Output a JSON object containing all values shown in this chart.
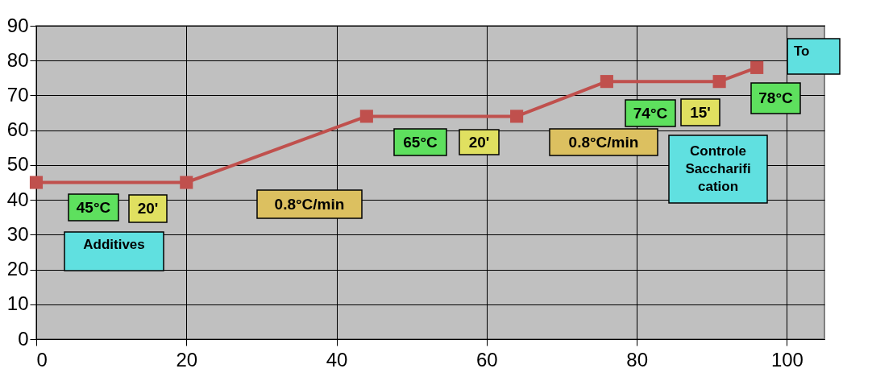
{
  "chart_data": {
    "type": "line",
    "x": [
      0,
      20,
      44,
      64,
      76,
      91,
      96
    ],
    "series": [
      {
        "color": "#c0504d",
        "values": [
          45,
          45,
          64,
          64,
          74,
          74,
          78
        ]
      }
    ],
    "xlim": [
      0,
      105
    ],
    "xticks": [
      0,
      20,
      40,
      60,
      80,
      100
    ],
    "ylim": [
      0,
      90
    ],
    "yticks": [
      0,
      10,
      20,
      30,
      40,
      50,
      60,
      70,
      80,
      90
    ],
    "grid": true,
    "marker": "square",
    "line_style": "solid",
    "annotations": [
      "45°C",
      "20'",
      "Additives",
      "0.8°C/min",
      "65°C",
      "20'",
      "0.8°C/min",
      "74°C",
      "15'",
      "78°C",
      "Controle\nSaccharifi\ncation",
      "To"
    ]
  }
}
